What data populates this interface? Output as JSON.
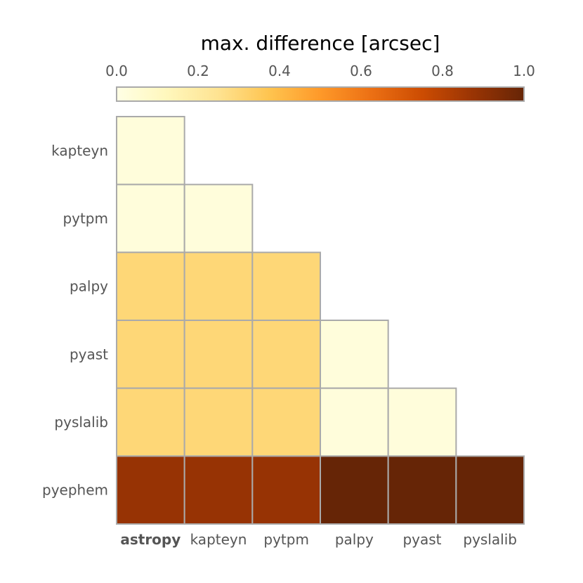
{
  "chart_data": {
    "type": "heatmap",
    "title": "max. difference [arcsec]",
    "colorbar": {
      "ticks": [
        "0.0",
        "0.2",
        "0.4",
        "0.6",
        "0.8",
        "1.0"
      ],
      "range": [
        0.0,
        1.0
      ],
      "colormap": "YlOrBr",
      "stops": [
        "#ffffe5",
        "#fff7bc",
        "#fee391",
        "#fec44f",
        "#fe9929",
        "#ec7014",
        "#cc4c02",
        "#993404",
        "#662506"
      ]
    },
    "x_categories": [
      "astropy",
      "kapteyn",
      "pytpm",
      "palpy",
      "pyast",
      "pyslalib"
    ],
    "x_emphasized": "astropy",
    "y_categories": [
      "kapteyn",
      "pytpm",
      "palpy",
      "pyast",
      "pyslalib",
      "pyephem"
    ],
    "values": [
      [
        0.03
      ],
      [
        0.03,
        0.03
      ],
      [
        0.3,
        0.3,
        0.3
      ],
      [
        0.3,
        0.3,
        0.3,
        0.03
      ],
      [
        0.3,
        0.3,
        0.3,
        0.03,
        0.03
      ],
      [
        0.88,
        0.88,
        0.88,
        1.0,
        1.0,
        1.0
      ]
    ],
    "grid_color": "#aaaaaa"
  }
}
